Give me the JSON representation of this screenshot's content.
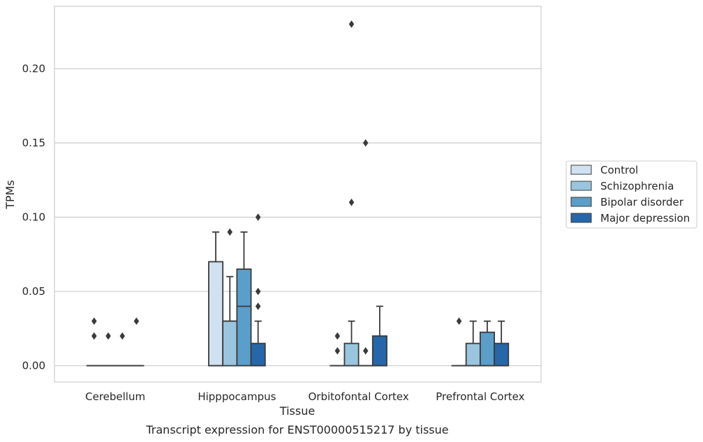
{
  "chart_data": {
    "type": "box",
    "caption": "Transcript expression for ENST00000515217 by tissue",
    "xlabel": "Tissue",
    "ylabel": "TPMs",
    "ylim": [
      -0.011,
      0.242
    ],
    "yticks": [
      0.0,
      0.05,
      0.1,
      0.15,
      0.2
    ],
    "ytick_labels": [
      "0.00",
      "0.05",
      "0.10",
      "0.15",
      "0.20"
    ],
    "grid": true,
    "legend_position": "right",
    "categories": [
      "Cerebellum",
      "Hipppocampus",
      "Orbitofontal Cortex",
      "Prefrontal Cortex"
    ],
    "series": [
      {
        "name": "Control",
        "color": "#d0e1f1",
        "boxes": [
          {
            "q1": 0,
            "median": 0,
            "q3": 0,
            "whisker_low": 0,
            "whisker_high": 0,
            "outliers": [
              0.02,
              0.03
            ]
          },
          {
            "q1": 0,
            "median": 0,
            "q3": 0.07,
            "whisker_low": 0,
            "whisker_high": 0.09,
            "outliers": []
          },
          {
            "q1": 0,
            "median": 0,
            "q3": 0,
            "whisker_low": 0,
            "whisker_high": 0,
            "outliers": [
              0.01,
              0.02
            ]
          },
          {
            "q1": 0,
            "median": 0,
            "q3": 0,
            "whisker_low": 0,
            "whisker_high": 0,
            "outliers": [
              0.03
            ]
          }
        ]
      },
      {
        "name": "Schizophrenia",
        "color": "#9ac5de",
        "boxes": [
          {
            "q1": 0,
            "median": 0,
            "q3": 0,
            "whisker_low": 0,
            "whisker_high": 0,
            "outliers": [
              0.02
            ]
          },
          {
            "q1": 0,
            "median": 0.03,
            "q3": 0.03,
            "whisker_low": 0,
            "whisker_high": 0.06,
            "outliers": [
              0.09
            ]
          },
          {
            "q1": 0,
            "median": 0,
            "q3": 0.015,
            "whisker_low": 0,
            "whisker_high": 0.03,
            "outliers": [
              0.11,
              0.23
            ]
          },
          {
            "q1": 0,
            "median": 0,
            "q3": 0.015,
            "whisker_low": 0,
            "whisker_high": 0.03,
            "outliers": []
          }
        ]
      },
      {
        "name": "Bipolar disorder",
        "color": "#5a9ec9",
        "boxes": [
          {
            "q1": 0,
            "median": 0,
            "q3": 0,
            "whisker_low": 0,
            "whisker_high": 0,
            "outliers": [
              0.02
            ]
          },
          {
            "q1": 0,
            "median": 0.04,
            "q3": 0.065,
            "whisker_low": 0,
            "whisker_high": 0.09,
            "outliers": []
          },
          {
            "q1": 0,
            "median": 0,
            "q3": 0,
            "whisker_low": 0,
            "whisker_high": 0,
            "outliers": [
              0.01,
              0.15
            ]
          },
          {
            "q1": 0,
            "median": 0,
            "q3": 0.0225,
            "whisker_low": 0,
            "whisker_high": 0.03,
            "outliers": []
          }
        ]
      },
      {
        "name": "Major depression",
        "color": "#2567a9",
        "boxes": [
          {
            "q1": 0,
            "median": 0,
            "q3": 0,
            "whisker_low": 0,
            "whisker_high": 0,
            "outliers": [
              0.03
            ]
          },
          {
            "q1": 0,
            "median": 0,
            "q3": 0.015,
            "whisker_low": 0,
            "whisker_high": 0.03,
            "outliers": [
              0.04,
              0.05,
              0.1
            ]
          },
          {
            "q1": 0,
            "median": 0,
            "q3": 0.02,
            "whisker_low": 0,
            "whisker_high": 0.04,
            "outliers": []
          },
          {
            "q1": 0,
            "median": 0,
            "q3": 0.015,
            "whisker_low": 0,
            "whisker_high": 0.03,
            "outliers": []
          }
        ]
      }
    ]
  }
}
